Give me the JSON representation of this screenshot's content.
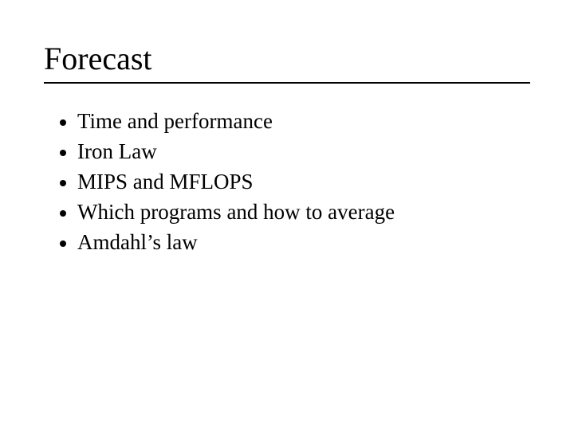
{
  "slide": {
    "title": "Forecast",
    "title_fontsize": 40,
    "body_fontsize": 27,
    "background_color": "#ffffff",
    "text_color": "#000000",
    "rule_color": "#000000",
    "bullet_color": "#000000",
    "font_family": "Times New Roman",
    "bullets": [
      "Time and performance",
      "Iron Law",
      "MIPS and MFLOPS",
      "Which programs and how to average",
      "Amdahl’s law"
    ]
  }
}
